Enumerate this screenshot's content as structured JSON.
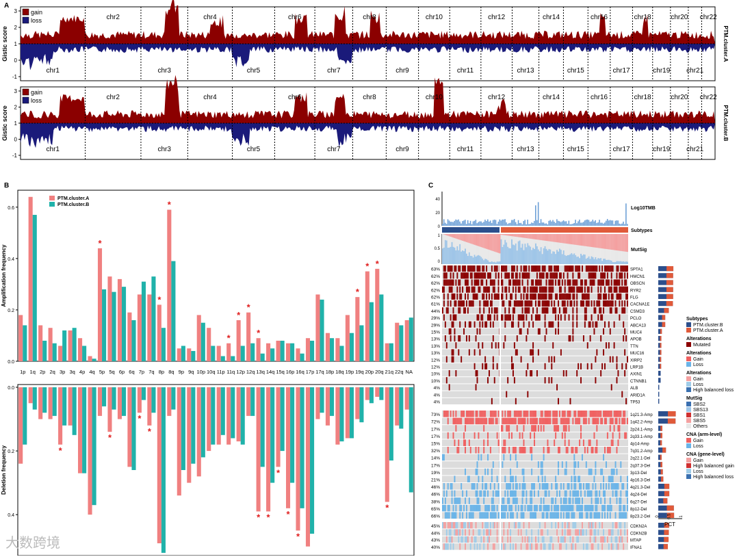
{
  "panelA": {
    "label": "A",
    "ylabel": "Gistic score",
    "legend": {
      "gain": "gain",
      "loss": "loss"
    },
    "colors": {
      "gain": "#8b0000",
      "loss": "#1a1a7a"
    },
    "chromosomes_top": [
      "chr2",
      "chr4",
      "chr6",
      "chr8",
      "chr10",
      "chr12",
      "chr14",
      "chr16",
      "chr18",
      "chr20",
      "chr22"
    ],
    "chromosomes_bottom": [
      "chr1",
      "chr3",
      "chr5",
      "chr7",
      "chr9",
      "chr11",
      "chr13",
      "chr15",
      "chr17",
      "chr19",
      "chr21"
    ],
    "tracks": [
      {
        "name": "PTM.cluster.A",
        "yticks": [
          "3",
          "2",
          "1",
          "0",
          "-1"
        ]
      },
      {
        "name": "PTM.cluster.B",
        "yticks": [
          "3",
          "2",
          "1",
          "0",
          "-1"
        ]
      }
    ]
  },
  "chart_data": {
    "type": "bar",
    "label": "B",
    "series": [
      {
        "name": "PTM.cluster.A",
        "color": "#f08080"
      },
      {
        "name": "PTM.cluster.B",
        "color": "#20b2aa"
      }
    ],
    "categories": [
      "1p",
      "1q",
      "2p",
      "2q",
      "3p",
      "3q",
      "4p",
      "4q",
      "5p",
      "5q",
      "6p",
      "6q",
      "7p",
      "7q",
      "8p",
      "8q",
      "9p",
      "9q",
      "10p",
      "10q",
      "11p",
      "11q",
      "12p",
      "12q",
      "13q",
      "14q",
      "15q",
      "16p",
      "16q",
      "17p",
      "17q",
      "18p",
      "18q",
      "19p",
      "19q",
      "20p",
      "20q",
      "21q",
      "22q",
      "NA"
    ],
    "amplification": {
      "ylabel": "Amplification frequency",
      "yticks": [
        "0.0",
        "0.2",
        "0.4",
        "0.6"
      ],
      "ylim": [
        0,
        0.65
      ],
      "A": [
        0.18,
        0.64,
        0.14,
        0.13,
        0.06,
        0.12,
        0.09,
        0.02,
        0.44,
        0.33,
        0.32,
        0.19,
        0.26,
        0.26,
        0.22,
        0.59,
        0.05,
        0.05,
        0.18,
        0.13,
        0.06,
        0.07,
        0.16,
        0.19,
        0.09,
        0.07,
        0.08,
        0.07,
        0.05,
        0.09,
        0.26,
        0.11,
        0.09,
        0.18,
        0.25,
        0.35,
        0.36,
        0.07,
        0.15,
        0.16
      ],
      "B": [
        0.14,
        0.57,
        0.08,
        0.07,
        0.12,
        0.13,
        0.06,
        0.01,
        0.28,
        0.27,
        0.29,
        0.16,
        0.31,
        0.33,
        0.13,
        0.39,
        0.06,
        0.04,
        0.15,
        0.06,
        0.02,
        0.02,
        0.06,
        0.07,
        0.03,
        0.05,
        0.08,
        0.07,
        0.03,
        0.08,
        0.24,
        0.09,
        0.06,
        0.11,
        0.14,
        0.23,
        0.26,
        0.07,
        0.14,
        0.17
      ],
      "significant": [
        "5p",
        "8p",
        "8q",
        "12p",
        "12q",
        "11q",
        "13q",
        "19q",
        "20p",
        "20q"
      ]
    },
    "deletion": {
      "ylabel": "Deletion frequency",
      "yticks": [
        "0.0",
        "0.2",
        "0.4"
      ],
      "ylim": [
        0,
        0.52
      ],
      "A": [
        0.24,
        0.05,
        0.1,
        0.1,
        0.18,
        0.12,
        0.27,
        0.4,
        0.09,
        0.14,
        0.1,
        0.25,
        0.08,
        0.12,
        0.49,
        0.09,
        0.34,
        0.3,
        0.28,
        0.2,
        0.18,
        0.18,
        0.17,
        0.09,
        0.39,
        0.39,
        0.25,
        0.38,
        0.45,
        0.5,
        0.1,
        0.12,
        0.18,
        0.16,
        0.1,
        0.04,
        0.03,
        0.36,
        0.12,
        0.07
      ],
      "B": [
        0.18,
        0.07,
        0.08,
        0.09,
        0.12,
        0.15,
        0.27,
        0.37,
        0.06,
        0.07,
        0.09,
        0.26,
        0.04,
        0.08,
        0.52,
        0.07,
        0.26,
        0.24,
        0.22,
        0.18,
        0.15,
        0.16,
        0.18,
        0.09,
        0.25,
        0.3,
        0.2,
        0.3,
        0.38,
        0.46,
        0.08,
        0.09,
        0.17,
        0.16,
        0.11,
        0.05,
        0.04,
        0.23,
        0.13,
        0.33
      ],
      "significant": [
        "3p",
        "5q",
        "7p",
        "7q",
        "13q",
        "14q",
        "15q",
        "16p",
        "16q",
        "21q"
      ]
    }
  },
  "panelC": {
    "label": "C",
    "tmb_label": "Log10TMB",
    "tmb_yticks": [
      "40",
      "20",
      "0"
    ],
    "subtypes_label": "Subtypes",
    "mutsig_label": "MutSig",
    "mutsig_yticks": [
      "1",
      "0.5",
      "0"
    ],
    "pct_label": "PCT",
    "pct_ticks": [
      "0",
      "0.5",
      "1"
    ],
    "mut_genes": [
      {
        "pct": "63%",
        "gene": "SPTA1"
      },
      {
        "pct": "62%",
        "gene": "HMCN1"
      },
      {
        "pct": "62%",
        "gene": "OBSCN"
      },
      {
        "pct": "62%",
        "gene": "RYR2"
      },
      {
        "pct": "62%",
        "gene": "FLG"
      },
      {
        "pct": "61%",
        "gene": "CACNA1E"
      },
      {
        "pct": "44%",
        "gene": "CSMD3"
      },
      {
        "pct": "29%",
        "gene": "PCLO"
      },
      {
        "pct": "29%",
        "gene": "ABCA13"
      },
      {
        "pct": "15%",
        "gene": "MUC4"
      },
      {
        "pct": "13%",
        "gene": "APOB"
      },
      {
        "pct": "13%",
        "gene": "TTN"
      },
      {
        "pct": "13%",
        "gene": "MUC16"
      },
      {
        "pct": "12%",
        "gene": "XIRP2"
      },
      {
        "pct": "12%",
        "gene": "LRP1B"
      },
      {
        "pct": "10%",
        "gene": "AXIN1"
      },
      {
        "pct": "10%",
        "gene": "CTNNB1"
      },
      {
        "pct": "4%",
        "gene": "ALB"
      },
      {
        "pct": "4%",
        "gene": "ARID1A"
      },
      {
        "pct": "4%",
        "gene": "TP53"
      }
    ],
    "cna_arm": [
      {
        "pct": "73%",
        "gene": "1q21.3-Amp"
      },
      {
        "pct": "72%",
        "gene": "1q42.2-Amp"
      },
      {
        "pct": "17%",
        "gene": "2p24.1-Amp"
      },
      {
        "pct": "17%",
        "gene": "2q33.1-Amp"
      },
      {
        "pct": "15%",
        "gene": "4p14-Amp"
      },
      {
        "pct": "32%",
        "gene": "7q31.2-Amp"
      },
      {
        "pct": "14%",
        "gene": "2q22.1-Del"
      },
      {
        "pct": "17%",
        "gene": "2q37.3-Del"
      },
      {
        "pct": "19%",
        "gene": "3p13-Del"
      },
      {
        "pct": "21%",
        "gene": "4p16.3-Del"
      },
      {
        "pct": "46%",
        "gene": "4q21.3-Del"
      },
      {
        "pct": "46%",
        "gene": "4q24-Del"
      },
      {
        "pct": "38%",
        "gene": "6q27-Del"
      },
      {
        "pct": "65%",
        "gene": "8p12-Del"
      },
      {
        "pct": "66%",
        "gene": "8p23.2-Del"
      }
    ],
    "cna_gene": [
      {
        "pct": "45%",
        "gene": "CDKN2A"
      },
      {
        "pct": "44%",
        "gene": "CDKN2B"
      },
      {
        "pct": "43%",
        "gene": "MTAP"
      },
      {
        "pct": "40%",
        "gene": "IFNA1"
      }
    ],
    "legends": [
      {
        "title": "Subtypes",
        "items": [
          {
            "label": "PTM.cluster.B",
            "color": "#2c4f8c"
          },
          {
            "label": "PTM.cluster.A",
            "color": "#e05a3a"
          }
        ]
      },
      {
        "title": "Alterations",
        "items": [
          {
            "label": "Mutated",
            "color": "#8b0000"
          }
        ]
      },
      {
        "title": "Alterations",
        "items": [
          {
            "label": "Gain",
            "color": "#f06060"
          },
          {
            "label": "Loss",
            "color": "#6ab4e8"
          }
        ]
      },
      {
        "title": "Alterations",
        "items": [
          {
            "label": "Gain",
            "color": "#f4a0a0"
          },
          {
            "label": "Loss",
            "color": "#a0cce8"
          },
          {
            "label": "High balanced loss",
            "color": "#3a70b0"
          }
        ]
      },
      {
        "title": "MutSig",
        "items": [
          {
            "label": "SBS2",
            "color": "#3a6fb0"
          },
          {
            "label": "SBS13",
            "color": "#9ec5e8"
          },
          {
            "label": "SBS1",
            "color": "#d03030"
          },
          {
            "label": "SBS5",
            "color": "#f4a0a0"
          },
          {
            "label": "Others",
            "color": "#e8e8e8"
          }
        ]
      },
      {
        "title": "CNA (arm-level)",
        "items": [
          {
            "label": "Gain",
            "color": "#f06060"
          },
          {
            "label": "Loss",
            "color": "#6ab4e8"
          }
        ]
      },
      {
        "title": "CNA (gene-level)",
        "items": [
          {
            "label": "Gain",
            "color": "#f4a0a0"
          },
          {
            "label": "High balanced gain",
            "color": "#d03030"
          },
          {
            "label": "Loss",
            "color": "#a0cce8"
          },
          {
            "label": "High balanced loss",
            "color": "#3a70b0"
          }
        ]
      }
    ]
  },
  "watermark": "大数跨境"
}
